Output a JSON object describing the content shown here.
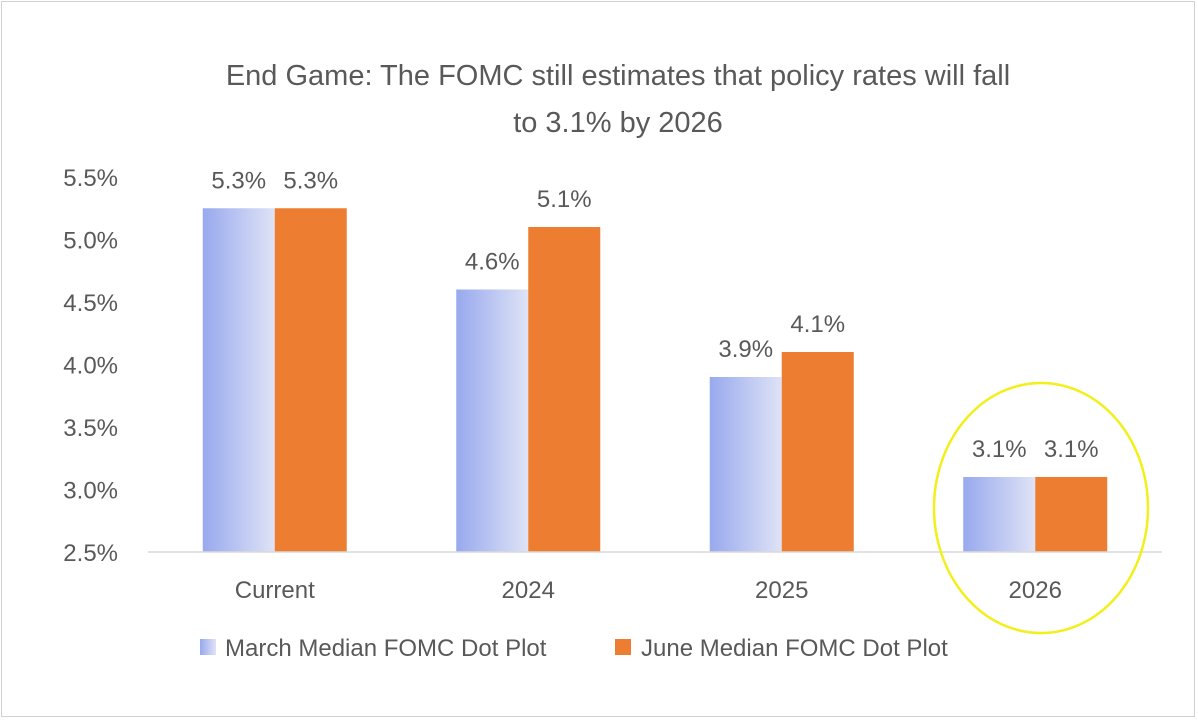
{
  "chart_data": {
    "type": "bar",
    "title": "End Game: The FOMC still estimates that policy rates will fall",
    "title_line2": "to 3.1% by 2026",
    "categories": [
      "Current",
      "2024",
      "2025",
      "2026"
    ],
    "series": [
      {
        "name": "March Median FOMC Dot Plot",
        "values": [
          5.25,
          4.6,
          3.9,
          3.1
        ],
        "labels": [
          "5.3%",
          "4.6%",
          "3.9%",
          "3.1%"
        ],
        "color_start": "#98a9ee",
        "color_end": "#dfe3f6"
      },
      {
        "name": "June Median FOMC Dot Plot",
        "values": [
          5.25,
          5.1,
          4.1,
          3.1
        ],
        "labels": [
          "5.3%",
          "5.1%",
          "4.1%",
          "3.1%"
        ],
        "color": "#ed7d31"
      }
    ],
    "ylim": [
      2.5,
      5.5
    ],
    "yticks": [
      "2.5%",
      "3.0%",
      "3.5%",
      "4.0%",
      "4.5%",
      "5.0%",
      "5.5%"
    ],
    "ytick_values": [
      2.5,
      3.0,
      3.5,
      4.0,
      4.5,
      5.0,
      5.5
    ],
    "grid": false,
    "legend": "bottom",
    "annotation": {
      "type": "circle-highlight",
      "target_category": "2026",
      "color": "#f2ef1a"
    }
  }
}
